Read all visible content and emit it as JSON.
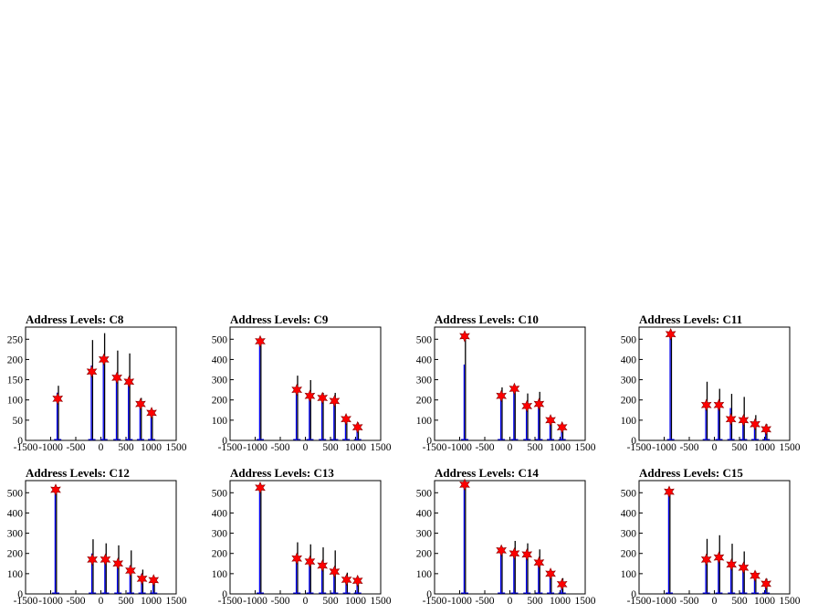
{
  "chart_data": [
    {
      "type": "bar",
      "title": "Address Levels: C8",
      "xlim": [
        -1500,
        1500
      ],
      "ylim": [
        0,
        280
      ],
      "xticks": [
        -1500,
        -1000,
        -500,
        0,
        500,
        1000,
        1500
      ],
      "yticks": [
        0,
        50,
        100,
        150,
        200,
        250
      ],
      "bars_black": [
        {
          "x": -860,
          "y": 135
        },
        {
          "x": -180,
          "y": 248
        },
        {
          "x": 60,
          "y": 265
        },
        {
          "x": 320,
          "y": 222
        },
        {
          "x": 560,
          "y": 215
        },
        {
          "x": 790,
          "y": 105
        },
        {
          "x": 1010,
          "y": 72
        }
      ],
      "bars_blue": [
        {
          "x": -860,
          "y": 118
        },
        {
          "x": -180,
          "y": 185
        },
        {
          "x": 60,
          "y": 210
        },
        {
          "x": 320,
          "y": 165
        },
        {
          "x": 560,
          "y": 155
        },
        {
          "x": 790,
          "y": 95
        },
        {
          "x": 1010,
          "y": 65
        }
      ],
      "peaks": [
        {
          "x": -860,
          "y": 103
        },
        {
          "x": -180,
          "y": 170
        },
        {
          "x": 60,
          "y": 200
        },
        {
          "x": 320,
          "y": 155
        },
        {
          "x": 560,
          "y": 145
        },
        {
          "x": 790,
          "y": 90
        },
        {
          "x": 1010,
          "y": 68
        }
      ]
    },
    {
      "type": "bar",
      "title": "Address Levels: C9",
      "xlim": [
        -1500,
        1500
      ],
      "ylim": [
        0,
        560
      ],
      "xticks": [
        -1500,
        -1000,
        -500,
        0,
        500,
        1000,
        1500
      ],
      "yticks": [
        0,
        100,
        200,
        300,
        400,
        500
      ],
      "bars_black": [
        {
          "x": -900,
          "y": 500
        },
        {
          "x": -170,
          "y": 320
        },
        {
          "x": 90,
          "y": 298
        },
        {
          "x": 340,
          "y": 235
        },
        {
          "x": 580,
          "y": 235
        },
        {
          "x": 810,
          "y": 118
        },
        {
          "x": 1040,
          "y": 88
        }
      ],
      "bars_blue": [
        {
          "x": -900,
          "y": 488
        },
        {
          "x": -170,
          "y": 255
        },
        {
          "x": 90,
          "y": 215
        },
        {
          "x": 340,
          "y": 205
        },
        {
          "x": 580,
          "y": 190
        },
        {
          "x": 810,
          "y": 102
        },
        {
          "x": 1040,
          "y": 60
        }
      ],
      "peaks": [
        {
          "x": -900,
          "y": 490
        },
        {
          "x": -170,
          "y": 250
        },
        {
          "x": 90,
          "y": 220
        },
        {
          "x": 340,
          "y": 210
        },
        {
          "x": 580,
          "y": 195
        },
        {
          "x": 810,
          "y": 105
        },
        {
          "x": 1040,
          "y": 65
        }
      ]
    },
    {
      "type": "bar",
      "title": "Address Levels: C10",
      "xlim": [
        -1500,
        1500
      ],
      "ylim": [
        0,
        560
      ],
      "xticks": [
        -1500,
        -1000,
        -500,
        0,
        500,
        1000,
        1500
      ],
      "yticks": [
        0,
        100,
        200,
        300,
        400,
        500
      ],
      "bars_black": [
        {
          "x": -900,
          "y": 525
        },
        {
          "x": -170,
          "y": 262
        },
        {
          "x": 90,
          "y": 268
        },
        {
          "x": 340,
          "y": 232
        },
        {
          "x": 580,
          "y": 240
        },
        {
          "x": 810,
          "y": 115
        },
        {
          "x": 1040,
          "y": 80
        }
      ],
      "bars_blue": [
        {
          "x": -900,
          "y": 375
        },
        {
          "x": -170,
          "y": 205
        },
        {
          "x": 90,
          "y": 250
        },
        {
          "x": 340,
          "y": 165
        },
        {
          "x": 580,
          "y": 175
        },
        {
          "x": 810,
          "y": 100
        },
        {
          "x": 1040,
          "y": 62
        }
      ],
      "peaks": [
        {
          "x": -900,
          "y": 515
        },
        {
          "x": -170,
          "y": 220
        },
        {
          "x": 90,
          "y": 255
        },
        {
          "x": 340,
          "y": 170
        },
        {
          "x": 580,
          "y": 180
        },
        {
          "x": 810,
          "y": 100
        },
        {
          "x": 1040,
          "y": 65
        }
      ]
    },
    {
      "type": "bar",
      "title": "Address Levels: C11",
      "xlim": [
        -1500,
        1500
      ],
      "ylim": [
        0,
        560
      ],
      "xticks": [
        -1500,
        -1000,
        -500,
        0,
        500,
        1000,
        1500
      ],
      "yticks": [
        0,
        100,
        200,
        300,
        400,
        500
      ],
      "bars_black": [
        {
          "x": -870,
          "y": 535
        },
        {
          "x": -160,
          "y": 290
        },
        {
          "x": 90,
          "y": 255
        },
        {
          "x": 330,
          "y": 230
        },
        {
          "x": 580,
          "y": 215
        },
        {
          "x": 810,
          "y": 125
        },
        {
          "x": 1030,
          "y": 80
        }
      ],
      "bars_blue": [
        {
          "x": -870,
          "y": 525
        },
        {
          "x": -160,
          "y": 155
        },
        {
          "x": 90,
          "y": 190
        },
        {
          "x": 330,
          "y": 160
        },
        {
          "x": 580,
          "y": 120
        },
        {
          "x": 810,
          "y": 88
        },
        {
          "x": 1030,
          "y": 55
        }
      ],
      "peaks": [
        {
          "x": -870,
          "y": 525
        },
        {
          "x": -160,
          "y": 175
        },
        {
          "x": 90,
          "y": 175
        },
        {
          "x": 330,
          "y": 105
        },
        {
          "x": 580,
          "y": 100
        },
        {
          "x": 810,
          "y": 80
        },
        {
          "x": 1030,
          "y": 55
        }
      ]
    },
    {
      "type": "bar",
      "title": "Address Levels: C12",
      "xlim": [
        -1500,
        1500
      ],
      "ylim": [
        0,
        560
      ],
      "xticks": [
        -1500,
        -1000,
        -500,
        0,
        500,
        1000,
        1500
      ],
      "yticks": [
        0,
        100,
        200,
        300,
        400,
        500
      ],
      "bars_black": [
        {
          "x": -900,
          "y": 520
        },
        {
          "x": -170,
          "y": 270
        },
        {
          "x": 90,
          "y": 250
        },
        {
          "x": 340,
          "y": 240
        },
        {
          "x": 590,
          "y": 215
        },
        {
          "x": 820,
          "y": 120
        },
        {
          "x": 1050,
          "y": 80
        }
      ],
      "bars_blue": [
        {
          "x": -900,
          "y": 510
        },
        {
          "x": -170,
          "y": 200
        },
        {
          "x": 90,
          "y": 185
        },
        {
          "x": 340,
          "y": 150
        },
        {
          "x": 590,
          "y": 140
        },
        {
          "x": 820,
          "y": 100
        },
        {
          "x": 1050,
          "y": 62
        }
      ],
      "peaks": [
        {
          "x": -900,
          "y": 515
        },
        {
          "x": -170,
          "y": 170
        },
        {
          "x": 90,
          "y": 170
        },
        {
          "x": 340,
          "y": 150
        },
        {
          "x": 590,
          "y": 115
        },
        {
          "x": 820,
          "y": 75
        },
        {
          "x": 1050,
          "y": 68
        }
      ]
    },
    {
      "type": "bar",
      "title": "Address Levels: C13",
      "xlim": [
        -1500,
        1500
      ],
      "ylim": [
        0,
        560
      ],
      "xticks": [
        -1500,
        -1000,
        -500,
        0,
        500,
        1000,
        1500
      ],
      "yticks": [
        0,
        100,
        200,
        300,
        400,
        500
      ],
      "bars_black": [
        {
          "x": -900,
          "y": 540
        },
        {
          "x": -170,
          "y": 255
        },
        {
          "x": 90,
          "y": 245
        },
        {
          "x": 340,
          "y": 230
        },
        {
          "x": 580,
          "y": 215
        },
        {
          "x": 820,
          "y": 105
        },
        {
          "x": 1040,
          "y": 80
        }
      ],
      "bars_blue": [
        {
          "x": -900,
          "y": 530
        },
        {
          "x": -170,
          "y": 190
        },
        {
          "x": 90,
          "y": 175
        },
        {
          "x": 340,
          "y": 160
        },
        {
          "x": 580,
          "y": 130
        },
        {
          "x": 820,
          "y": 90
        },
        {
          "x": 1040,
          "y": 60
        }
      ],
      "peaks": [
        {
          "x": -900,
          "y": 525
        },
        {
          "x": -170,
          "y": 175
        },
        {
          "x": 90,
          "y": 160
        },
        {
          "x": 340,
          "y": 140
        },
        {
          "x": 580,
          "y": 110
        },
        {
          "x": 820,
          "y": 70
        },
        {
          "x": 1040,
          "y": 65
        }
      ]
    },
    {
      "type": "bar",
      "title": "Address Levels: C14",
      "xlim": [
        -1500,
        1500
      ],
      "ylim": [
        0,
        560
      ],
      "xticks": [
        -1500,
        -1000,
        -500,
        0,
        500,
        1000,
        1500
      ],
      "yticks": [
        0,
        100,
        200,
        300,
        400,
        500
      ],
      "bars_black": [
        {
          "x": -900,
          "y": 548
        },
        {
          "x": -170,
          "y": 232
        },
        {
          "x": 90,
          "y": 262
        },
        {
          "x": 340,
          "y": 250
        },
        {
          "x": 580,
          "y": 220
        },
        {
          "x": 810,
          "y": 118
        },
        {
          "x": 1040,
          "y": 78
        }
      ],
      "bars_blue": [
        {
          "x": -900,
          "y": 540
        },
        {
          "x": -170,
          "y": 215
        },
        {
          "x": 90,
          "y": 200
        },
        {
          "x": 340,
          "y": 195
        },
        {
          "x": 580,
          "y": 160
        },
        {
          "x": 810,
          "y": 105
        },
        {
          "x": 1040,
          "y": 58
        }
      ],
      "peaks": [
        {
          "x": -900,
          "y": 540
        },
        {
          "x": -170,
          "y": 215
        },
        {
          "x": 90,
          "y": 200
        },
        {
          "x": 340,
          "y": 195
        },
        {
          "x": 580,
          "y": 155
        },
        {
          "x": 810,
          "y": 100
        },
        {
          "x": 1040,
          "y": 48
        }
      ]
    },
    {
      "type": "bar",
      "title": "Address Levels: C15",
      "xlim": [
        -1500,
        1500
      ],
      "ylim": [
        0,
        560
      ],
      "xticks": [
        -1500,
        -1000,
        -500,
        0,
        500,
        1000,
        1500
      ],
      "yticks": [
        0,
        100,
        200,
        300,
        400,
        500
      ],
      "bars_black": [
        {
          "x": -900,
          "y": 515
        },
        {
          "x": -160,
          "y": 272
        },
        {
          "x": 90,
          "y": 290
        },
        {
          "x": 340,
          "y": 248
        },
        {
          "x": 580,
          "y": 210
        },
        {
          "x": 810,
          "y": 110
        },
        {
          "x": 1030,
          "y": 75
        }
      ],
      "bars_blue": [
        {
          "x": -900,
          "y": 505
        },
        {
          "x": -160,
          "y": 180
        },
        {
          "x": 90,
          "y": 195
        },
        {
          "x": 340,
          "y": 155
        },
        {
          "x": 580,
          "y": 150
        },
        {
          "x": 810,
          "y": 95
        },
        {
          "x": 1030,
          "y": 58
        }
      ],
      "peaks": [
        {
          "x": -900,
          "y": 505
        },
        {
          "x": -160,
          "y": 170
        },
        {
          "x": 90,
          "y": 180
        },
        {
          "x": 340,
          "y": 145
        },
        {
          "x": 580,
          "y": 130
        },
        {
          "x": 810,
          "y": 90
        },
        {
          "x": 1030,
          "y": 50
        }
      ]
    }
  ]
}
